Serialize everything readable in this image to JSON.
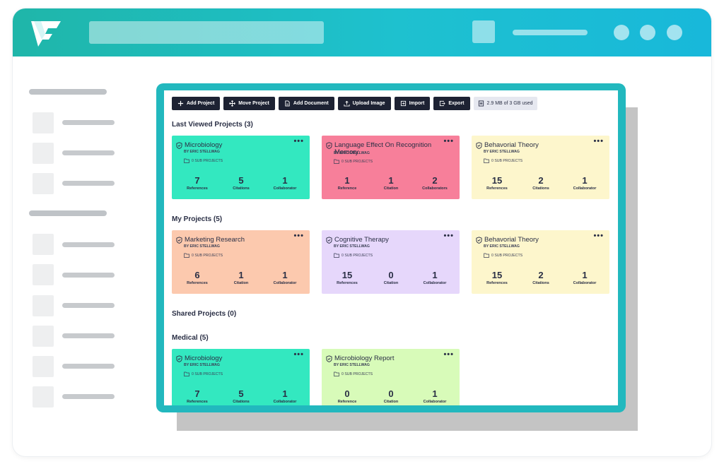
{
  "colors": {
    "header": "#1ec1cf",
    "frame_accent": "#22b8be",
    "toolbar_button": "#1d2233",
    "green": "#33e8c0",
    "pink": "#f77f9a",
    "yellow": "#fdf6cc",
    "orange": "#fcc9ae",
    "purple": "#e6d7fb",
    "lime": "#d8fbb9"
  },
  "toolbar": {
    "buttons": [
      {
        "label": "Add Project",
        "icon": "plus-icon"
      },
      {
        "label": "Move Project",
        "icon": "move-icon"
      },
      {
        "label": "Add Document",
        "icon": "document-icon"
      },
      {
        "label": "Upload Image",
        "icon": "upload-icon"
      },
      {
        "label": "Import",
        "icon": "import-icon"
      },
      {
        "label": "Export",
        "icon": "export-icon"
      }
    ],
    "storage": "2.9 MB of 3 GB used"
  },
  "sections": {
    "last_viewed": "Last Viewed Projects (3)",
    "my_projects": "My Projects (5)",
    "shared": "Shared Projects (0)",
    "medical": "Medical (5)"
  },
  "cards": {
    "lv1": {
      "title": "Microbiology",
      "by": "BY ERIC STELLWAG",
      "sub": "0 SUB PROJECTS",
      "s1": {
        "num": "7",
        "lbl": "References"
      },
      "s2": {
        "num": "5",
        "lbl": "Citations"
      },
      "s3": {
        "num": "1",
        "lbl": "Collaborator"
      }
    },
    "lv2": {
      "title": "Language Effect On Recognition Memory",
      "by": "BY ERIC STELLWAG",
      "sub": "0 SUB PROJECTS",
      "s1": {
        "num": "1",
        "lbl": "Reference"
      },
      "s2": {
        "num": "1",
        "lbl": "Citation"
      },
      "s3": {
        "num": "2",
        "lbl": "Collaborators"
      }
    },
    "lv3": {
      "title": "Behavorial Theory",
      "by": "BY ERIC STELLWAG",
      "sub": "0 SUB PROJECTS",
      "s1": {
        "num": "15",
        "lbl": "References"
      },
      "s2": {
        "num": "2",
        "lbl": "Citations"
      },
      "s3": {
        "num": "1",
        "lbl": "Collaborator"
      }
    },
    "mp1": {
      "title": "Marketing Research",
      "by": "BY ERIC STELLWAG",
      "sub": "0 SUB PROJECTS",
      "s1": {
        "num": "6",
        "lbl": "References"
      },
      "s2": {
        "num": "1",
        "lbl": "Citation"
      },
      "s3": {
        "num": "1",
        "lbl": "Collaborator"
      }
    },
    "mp2": {
      "title": "Cognitive Therapy",
      "by": "BY ERIC STELLWAG",
      "sub": "0 SUB PROJECTS",
      "s1": {
        "num": "15",
        "lbl": "References"
      },
      "s2": {
        "num": "0",
        "lbl": "Citation"
      },
      "s3": {
        "num": "1",
        "lbl": "Collaborator"
      }
    },
    "mp3": {
      "title": "Behavorial Theory",
      "by": "BY ERIC STELLWAG",
      "sub": "0 SUB PROJECTS",
      "s1": {
        "num": "15",
        "lbl": "References"
      },
      "s2": {
        "num": "2",
        "lbl": "Citations"
      },
      "s3": {
        "num": "1",
        "lbl": "Collaborator"
      }
    },
    "md1": {
      "title": "Microbiology",
      "by": "BY ERIC STELLWAG",
      "sub": "0 SUB PROJECTS",
      "s1": {
        "num": "7",
        "lbl": "References"
      },
      "s2": {
        "num": "5",
        "lbl": "Citations"
      },
      "s3": {
        "num": "1",
        "lbl": "Collaborator"
      }
    },
    "md2": {
      "title": "Microbiology Report",
      "by": "BY ERIC STELLWAG",
      "sub": "0 SUB PROJECTS",
      "s1": {
        "num": "0",
        "lbl": "Reference"
      },
      "s2": {
        "num": "0",
        "lbl": "Citation"
      },
      "s3": {
        "num": "1",
        "lbl": "Collaborator"
      }
    }
  },
  "more_label": "•••"
}
